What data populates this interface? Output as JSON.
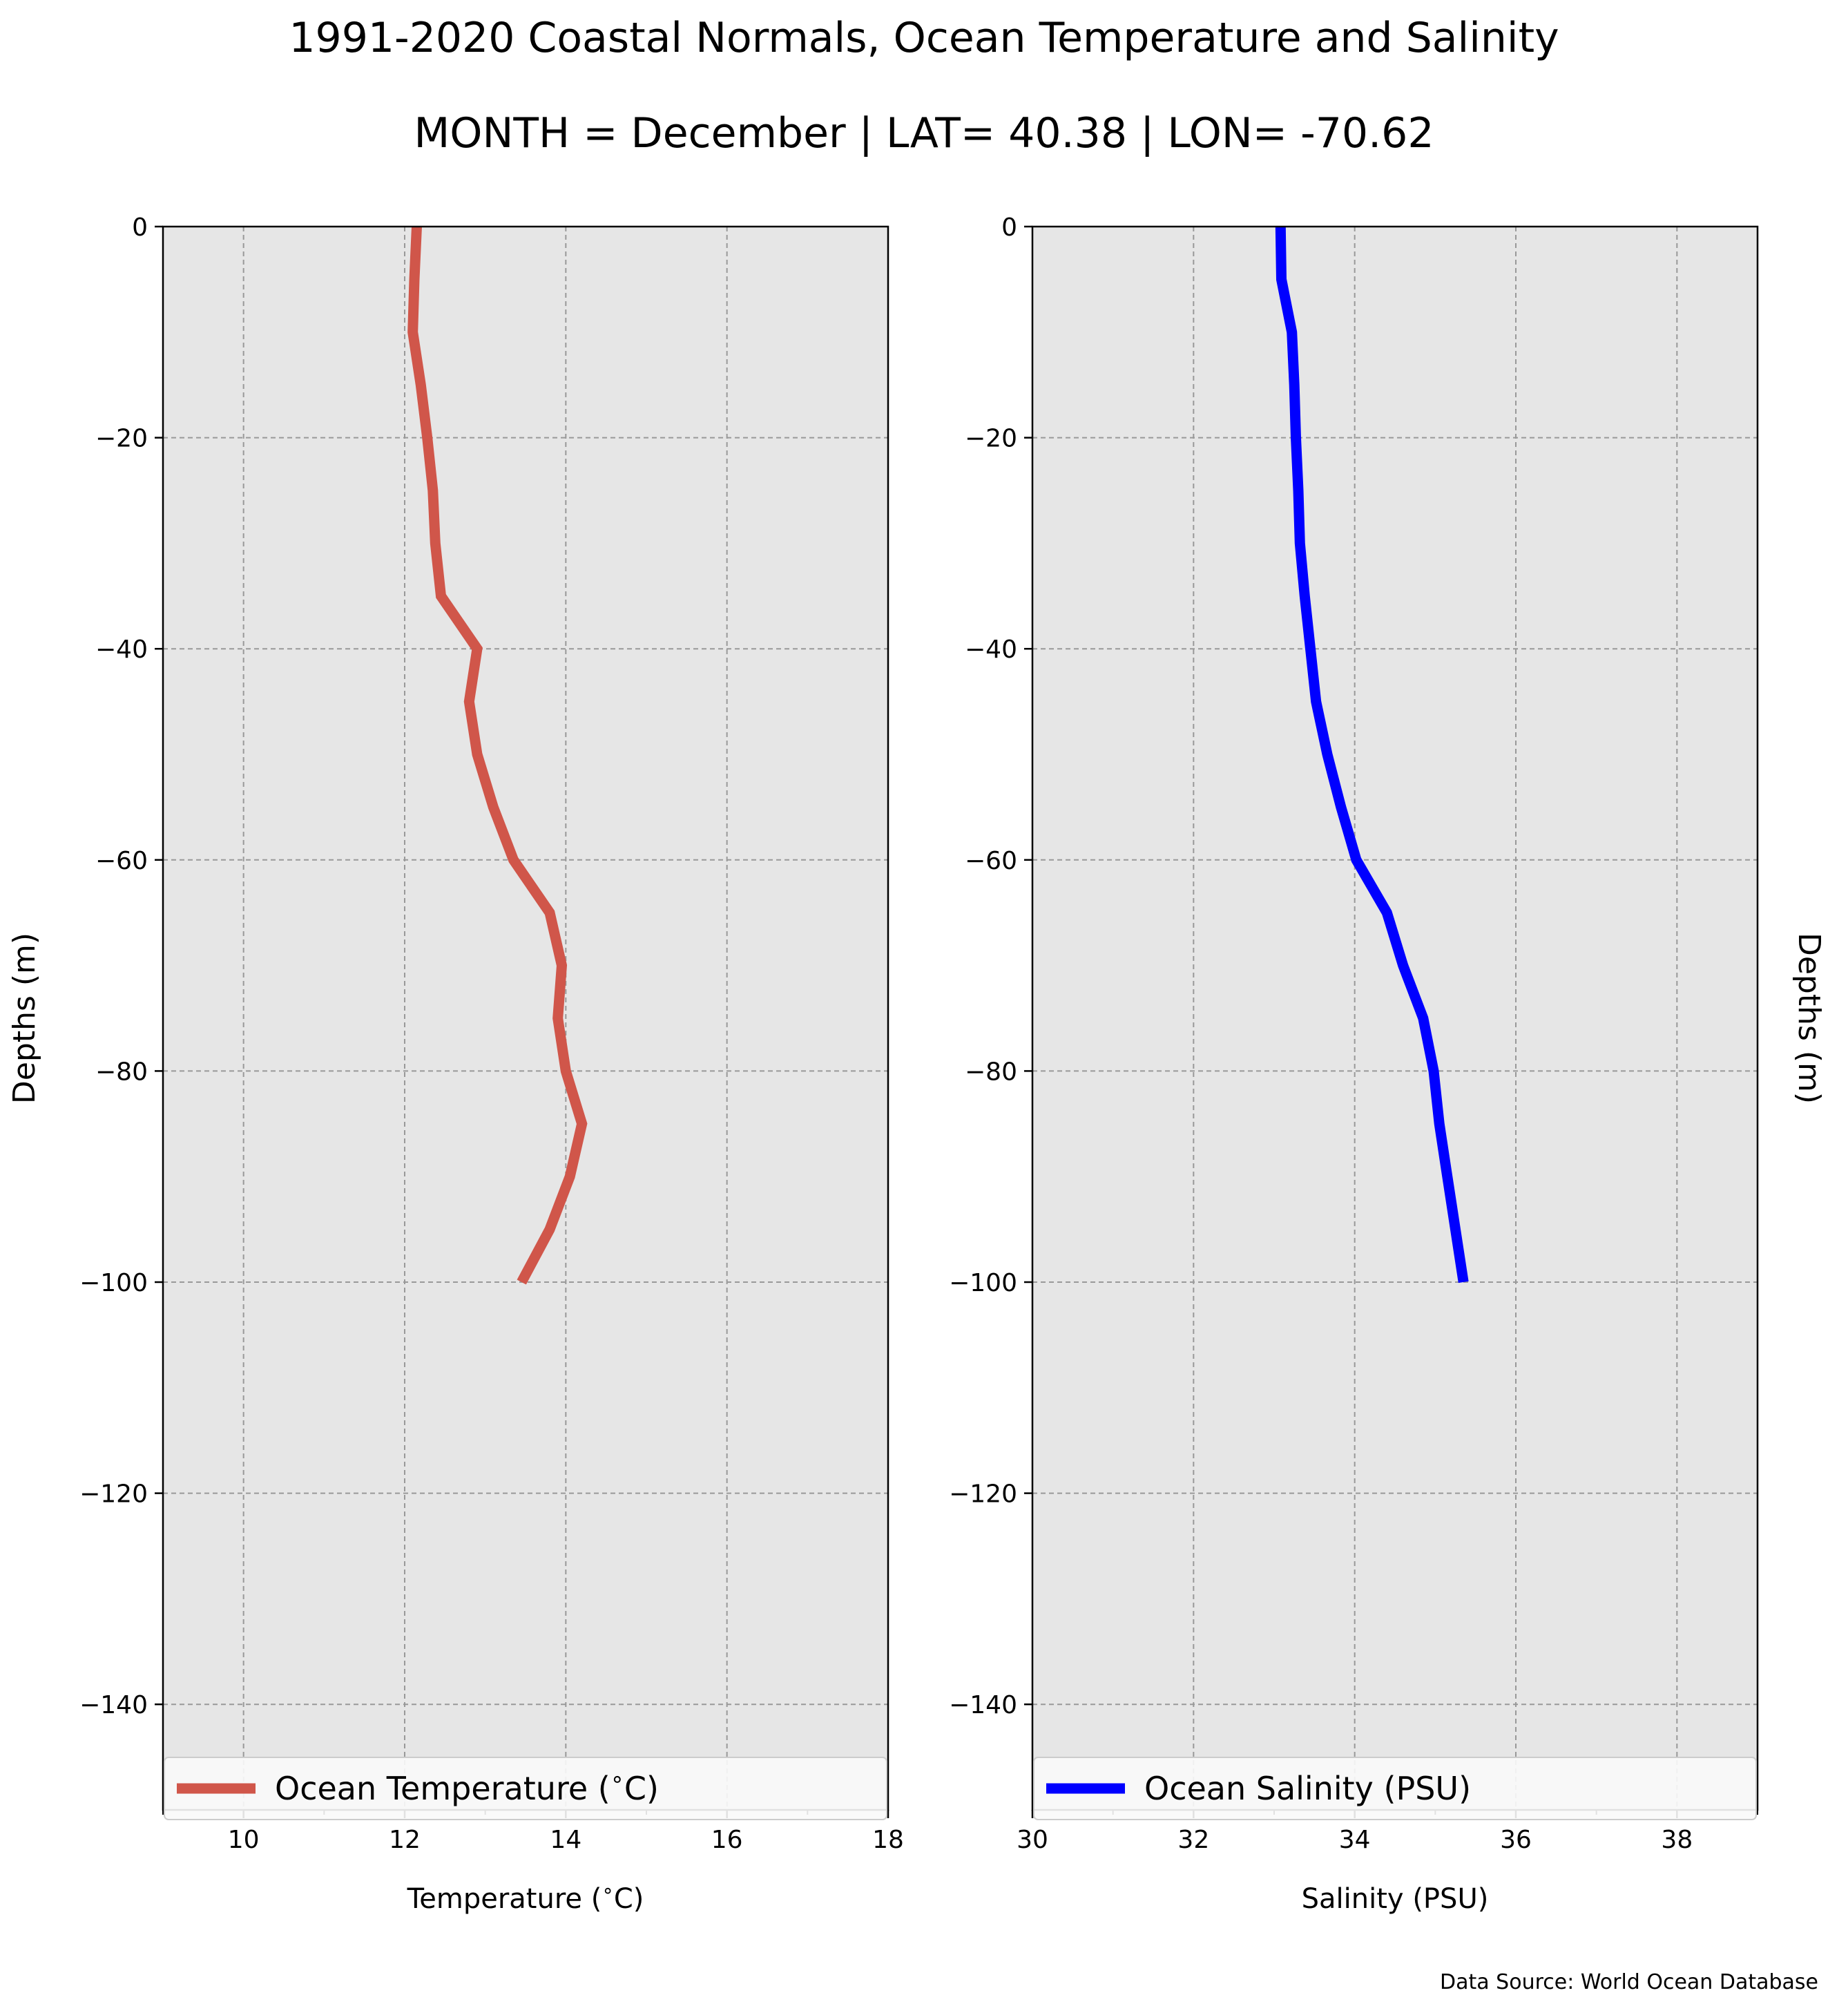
{
  "title": "1991-2020 Coastal Normals, Ocean Temperature and Salinity",
  "subtitle": "MONTH = December | LAT= 40.38 | LON= -70.62",
  "source": "Data Source: World Ocean Database",
  "colors": {
    "plot_background": "#e6e6e6",
    "grid": "#999999",
    "temperature_line": "#d0564a",
    "salinity_line": "#0000ff"
  },
  "chart_data": [
    {
      "type": "line",
      "name": "temperature-profile",
      "xlabel": "Temperature ($^\\circ$C)",
      "ylabel": "Depths (m)",
      "xlim": [
        9,
        18
      ],
      "ylim": [
        -150,
        0
      ],
      "xticks": [
        10,
        12,
        14,
        16,
        18
      ],
      "xtick_labels": [
        "10",
        "12",
        "14",
        "16",
        "18"
      ],
      "yticks": [
        0,
        -20,
        -40,
        -60,
        -80,
        -100,
        -120,
        -140
      ],
      "ytick_labels": [
        "0",
        "−20",
        "−40",
        "−60",
        "−80",
        "−100",
        "−120",
        "−140"
      ],
      "grid": true,
      "legend_position": "bottom",
      "legend": "Ocean Temperature ($^\\circ$C)",
      "series": [
        {
          "name": "Ocean Temperature ($^\\circ$C)",
          "x": [
            12.15,
            12.12,
            12.1,
            12.2,
            12.28,
            12.35,
            12.38,
            12.45,
            12.9,
            12.8,
            12.9,
            13.1,
            13.35,
            13.8,
            13.95,
            13.9,
            14.0,
            14.2,
            14.05,
            13.8,
            13.45
          ],
          "y": [
            0,
            -5,
            -10,
            -15,
            -20,
            -25,
            -30,
            -35,
            -40,
            -45,
            -50,
            -55,
            -60,
            -65,
            -70,
            -75,
            -80,
            -85,
            -90,
            -95,
            -100
          ]
        }
      ]
    },
    {
      "type": "line",
      "name": "salinity-profile",
      "xlabel": "Salinity (PSU)",
      "ylabel": "Depths (m)",
      "xlim": [
        30,
        39
      ],
      "ylim": [
        -150,
        0
      ],
      "xticks": [
        30,
        32,
        34,
        36,
        38
      ],
      "xtick_labels": [
        "30",
        "32",
        "34",
        "36",
        "38"
      ],
      "yticks": [
        0,
        -20,
        -40,
        -60,
        -80,
        -100,
        -120,
        -140
      ],
      "ytick_labels": [
        "0",
        "−20",
        "−40",
        "−60",
        "−80",
        "−100",
        "−120",
        "−140"
      ],
      "grid": true,
      "legend_position": "bottom",
      "legend": "Ocean Salinity (PSU)",
      "series": [
        {
          "name": "Ocean Salinity (PSU)",
          "x": [
            33.08,
            33.09,
            33.22,
            33.25,
            33.27,
            33.3,
            33.32,
            33.38,
            33.45,
            33.52,
            33.66,
            33.83,
            34.02,
            34.4,
            34.6,
            34.85,
            34.98,
            35.05,
            35.15,
            35.25,
            35.35
          ],
          "y": [
            0,
            -5,
            -10,
            -15,
            -20,
            -25,
            -30,
            -35,
            -40,
            -45,
            -50,
            -55,
            -60,
            -65,
            -70,
            -75,
            -80,
            -85,
            -90,
            -95,
            -100
          ]
        }
      ]
    }
  ]
}
